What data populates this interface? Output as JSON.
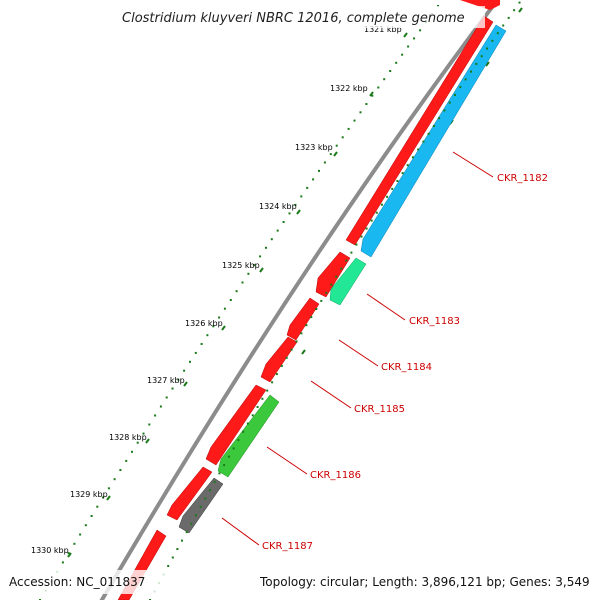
{
  "title": "Clostridium kluyveri NBRC 12016, complete genome",
  "accession": "Accession: NC_011837",
  "summary": "Topology: circular; Length: 3,896,121 bp; Genes: 3,549",
  "top_partial_label": "1321 kbp",
  "colors": {
    "forward_cds": "#ff1a1a",
    "reverse_blue": "#19b8f0",
    "reverse_teal": "#22e896",
    "reverse_green": "#3cc83c",
    "reverse_gray": "#6a6a6a",
    "backbone": "#8c8c8c",
    "tick": "#1a7a1a",
    "label": "#cc0000"
  },
  "scale_labels": [
    "1322 kbp",
    "1323 kbp",
    "1324 kbp",
    "1325 kbp",
    "1326 kbp",
    "1327 kbp",
    "1328 kbp",
    "1329 kbp",
    "1330 kbp"
  ],
  "genes": [
    {
      "label": "CKR_1182",
      "color": "reverse_blue"
    },
    {
      "label": "CKR_1183",
      "color": "reverse_teal"
    },
    {
      "label": "CKR_1184",
      "color": "forward_cds"
    },
    {
      "label": "CKR_1185",
      "color": "forward_cds"
    },
    {
      "label": "CKR_1186",
      "color": "reverse_green"
    },
    {
      "label": "CKR_1187",
      "color": "reverse_gray"
    }
  ]
}
